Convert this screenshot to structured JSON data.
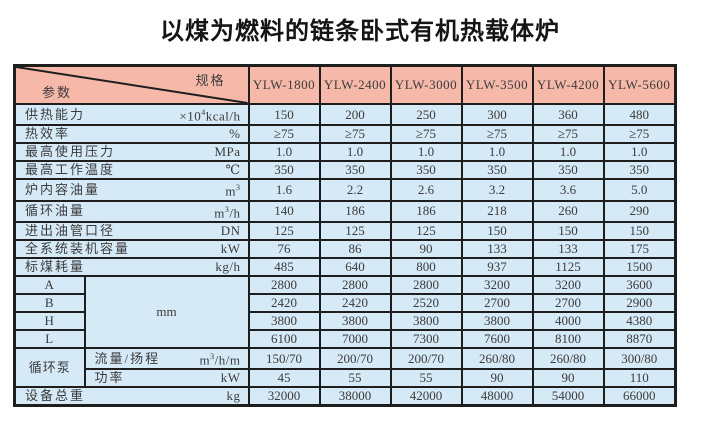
{
  "title": "以煤为燃料的链条卧式有机热载体炉",
  "colors": {
    "header_bg": "#f5b8a9",
    "body_bg": "#d5e9f7",
    "border": "#1e1e1e",
    "text": "#3c3c3c"
  },
  "table": {
    "corner": {
      "spec_label": "规格",
      "param_label": "参数"
    },
    "models": [
      "YLW-1800",
      "YLW-2400",
      "YLW-3000",
      "YLW-3500",
      "YLW-4200",
      "YLW-5600"
    ],
    "dims_unit": "mm",
    "pump_label": "循环泵",
    "rows": [
      {
        "kind": "param",
        "label": "供热能力",
        "unit": "×10⁴kcal/h",
        "values": [
          "150",
          "200",
          "250",
          "300",
          "360",
          "480"
        ]
      },
      {
        "kind": "param",
        "label": "热效率",
        "unit": "%",
        "values": [
          "≥75",
          "≥75",
          "≥75",
          "≥75",
          "≥75",
          "≥75"
        ]
      },
      {
        "kind": "param",
        "label": "最高使用压力",
        "unit": "MPa",
        "values": [
          "1.0",
          "1.0",
          "1.0",
          "1.0",
          "1.0",
          "1.0"
        ]
      },
      {
        "kind": "param",
        "label": "最高工作温度",
        "unit": "℃",
        "values": [
          "350",
          "350",
          "350",
          "350",
          "350",
          "350"
        ]
      },
      {
        "kind": "param",
        "label": "炉内容油量",
        "unit": "m³",
        "values": [
          "1.6",
          "2.2",
          "2.6",
          "3.2",
          "3.6",
          "5.0"
        ]
      },
      {
        "kind": "param",
        "label": "循环油量",
        "unit": "m³/h",
        "values": [
          "140",
          "186",
          "186",
          "218",
          "260",
          "290"
        ]
      },
      {
        "kind": "param",
        "label": "进出油管口径",
        "unit": "DN",
        "values": [
          "125",
          "125",
          "125",
          "150",
          "150",
          "150"
        ]
      },
      {
        "kind": "param",
        "label": "全系统装机容量",
        "unit": "kW",
        "values": [
          "76",
          "86",
          "90",
          "133",
          "133",
          "175"
        ]
      },
      {
        "kind": "param",
        "label": "标煤耗量",
        "unit": "kg/h",
        "values": [
          "485",
          "640",
          "800",
          "937",
          "1125",
          "1500"
        ]
      },
      {
        "kind": "dim",
        "label": "A",
        "values": [
          "2800",
          "2800",
          "2800",
          "3200",
          "3200",
          "3600"
        ]
      },
      {
        "kind": "dim",
        "label": "B",
        "values": [
          "2420",
          "2420",
          "2520",
          "2700",
          "2700",
          "2900"
        ]
      },
      {
        "kind": "dim",
        "label": "H",
        "values": [
          "3800",
          "3800",
          "3800",
          "3800",
          "4000",
          "4380"
        ]
      },
      {
        "kind": "dim",
        "label": "L",
        "values": [
          "6100",
          "7000",
          "7300",
          "7600",
          "8100",
          "8870"
        ]
      },
      {
        "kind": "pump",
        "label": "流量/扬程",
        "unit": "m³/h/m",
        "values": [
          "150/70",
          "200/70",
          "200/70",
          "260/80",
          "260/80",
          "300/80"
        ]
      },
      {
        "kind": "pump",
        "label": "功率",
        "unit": "kW",
        "values": [
          "45",
          "55",
          "55",
          "90",
          "90",
          "110"
        ]
      },
      {
        "kind": "param",
        "label": "设备总重",
        "unit": "kg",
        "values": [
          "32000",
          "38000",
          "42000",
          "48000",
          "54000",
          "66000"
        ]
      }
    ]
  }
}
